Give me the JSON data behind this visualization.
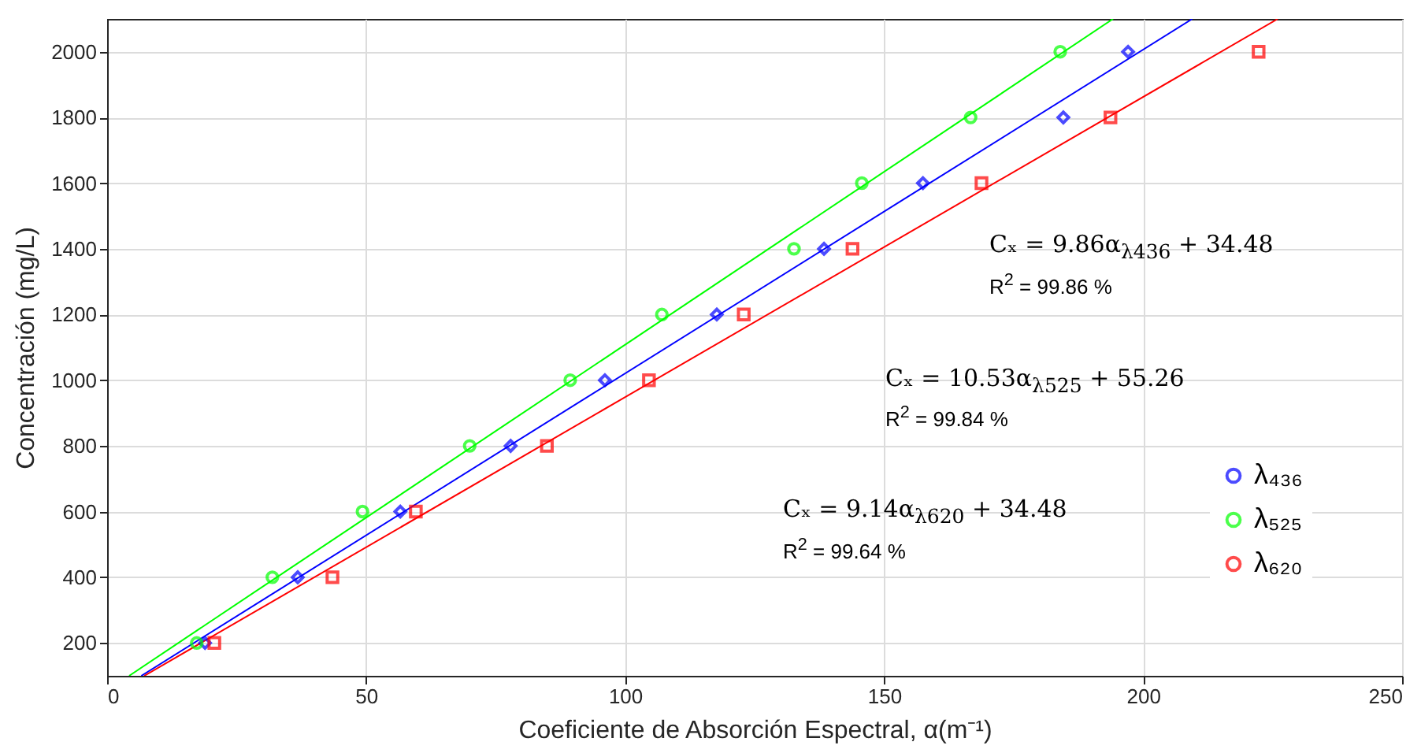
{
  "chart_data": {
    "type": "scatter",
    "xlabel": "Coeficiente de Absorción Espectral, α(m⁻¹)",
    "ylabel": "Concentración (mg/L)",
    "xlim": [
      0,
      250
    ],
    "xticks": [
      0,
      50,
      100,
      150,
      200,
      250
    ],
    "ylim": [
      100,
      2100
    ],
    "yticks": [
      200,
      400,
      600,
      800,
      1000,
      1200,
      1400,
      1600,
      1800,
      2000
    ],
    "grid": true,
    "legend": "right",
    "series": [
      {
        "name": "λ₄₃₆",
        "color": "#0000ff",
        "marker": "diamond",
        "x": [
          18.9,
          36.8,
          56.6,
          77.9,
          96.1,
          117.7,
          138.4,
          157.5,
          184.6,
          197.1
        ],
        "values": [
          200,
          400,
          600,
          800,
          1000,
          1200,
          1400,
          1600,
          1800,
          2000
        ]
      },
      {
        "name": "λ₅₂₅",
        "color": "#00ff00",
        "marker": "circle",
        "x": [
          17.3,
          31.9,
          49.3,
          70.0,
          89.4,
          107.1,
          132.6,
          145.7,
          166.7,
          184.0
        ],
        "values": [
          200,
          400,
          600,
          800,
          1000,
          1200,
          1400,
          1600,
          1800,
          2000
        ]
      },
      {
        "name": "λ₆₂₀",
        "color": "#ff0000",
        "marker": "square",
        "x": [
          20.7,
          43.5,
          59.6,
          84.9,
          104.6,
          122.9,
          143.9,
          168.8,
          193.7,
          222.3
        ],
        "values": [
          200,
          400,
          600,
          800,
          1000,
          1200,
          1400,
          1600,
          1800,
          2000
        ]
      },
      {
        "type": "line",
        "color": "#0000ff",
        "x": [
          6.6,
          209.5
        ],
        "values": [
          100,
          2100
        ]
      },
      {
        "type": "line",
        "color": "#00ff00",
        "x": [
          4.25,
          194.2
        ],
        "values": [
          100,
          2100
        ]
      },
      {
        "type": "line",
        "color": "#ff0000",
        "x": [
          7.17,
          226.0
        ],
        "values": [
          100,
          2100
        ]
      }
    ],
    "annotations": [
      "Cₓ = 9.86α$_{λ436}$ + 34.48",
      "R$^{2}$ = 99.86 %",
      "Cₓ = 10.53α$_{λ525}$ + 55.26",
      "R$^{2}$ = 99.84 %",
      "Cₓ = 9.14α$_{λ620}$ + 34.48",
      "R$^{2}$ = 99.64 %"
    ]
  }
}
